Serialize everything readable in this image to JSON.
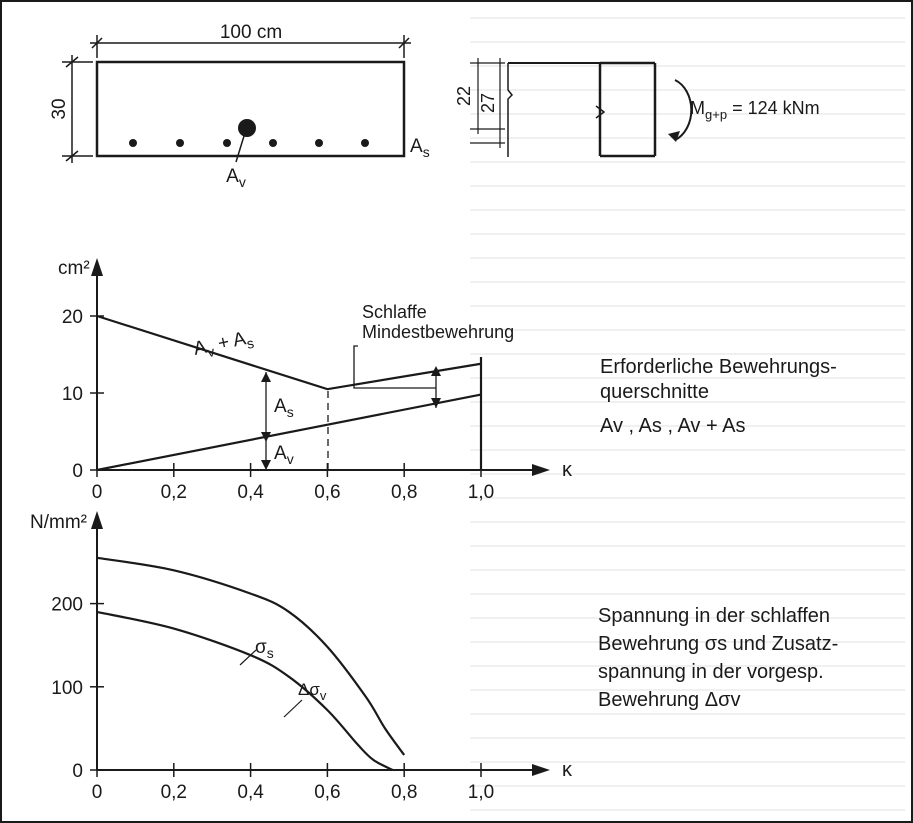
{
  "section": {
    "width_label": "100 cm",
    "height_label": "30",
    "steel_label": "As",
    "prestress_label": "Av"
  },
  "side_section": {
    "dim_inner": "22",
    "dim_outer": "27",
    "moment_label": "Mg+p = 124 kNm"
  },
  "chart1": {
    "caption": [
      "Erforderliche Bewehrungs-",
      "querschnitte",
      "Av ,  As ,  Av + As"
    ],
    "chart_data": {
      "type": "line",
      "y_unit": "cm²",
      "x_symbol": "κ",
      "xlim": [
        0,
        1.0
      ],
      "ylim": [
        0,
        20
      ],
      "x_ticks": [
        "0",
        "0,2",
        "0,4",
        "0,6",
        "0,8",
        "1,0"
      ],
      "y_ticks": [
        "0",
        "10",
        "20"
      ],
      "series": [
        {
          "name": "Av + As",
          "x": [
            0,
            0.6,
            1.0
          ],
          "y": [
            20,
            10.5,
            13.8
          ]
        },
        {
          "name": "Av",
          "x": [
            0,
            1.0
          ],
          "y": [
            0,
            9.8
          ]
        }
      ],
      "annotations": [
        "Schlaffe",
        "Mindestbewehrung",
        "As",
        "Av"
      ]
    }
  },
  "chart2": {
    "caption": [
      "Spannung in der schlaffen",
      "Bewehrung σs und Zusatz-",
      "spannung in der vorgesp.",
      "Bewehrung Δσv"
    ],
    "chart_data": {
      "type": "line",
      "y_unit": "N/mm²",
      "x_symbol": "κ",
      "xlim": [
        0,
        1.0
      ],
      "ylim": [
        0,
        250
      ],
      "x_ticks": [
        "0",
        "0,2",
        "0,4",
        "0,6",
        "0,8",
        "1,0"
      ],
      "y_ticks": [
        "0",
        "100",
        "200"
      ],
      "series": [
        {
          "name": "σs",
          "x": [
            0,
            0.2,
            0.4,
            0.5,
            0.6,
            0.7,
            0.75,
            0.8
          ],
          "y": [
            255,
            240,
            212,
            190,
            148,
            88,
            50,
            18
          ]
        },
        {
          "name": "Δσv",
          "x": [
            0,
            0.2,
            0.4,
            0.5,
            0.6,
            0.68,
            0.72,
            0.77
          ],
          "y": [
            190,
            170,
            138,
            112,
            72,
            30,
            12,
            0
          ]
        }
      ]
    }
  }
}
